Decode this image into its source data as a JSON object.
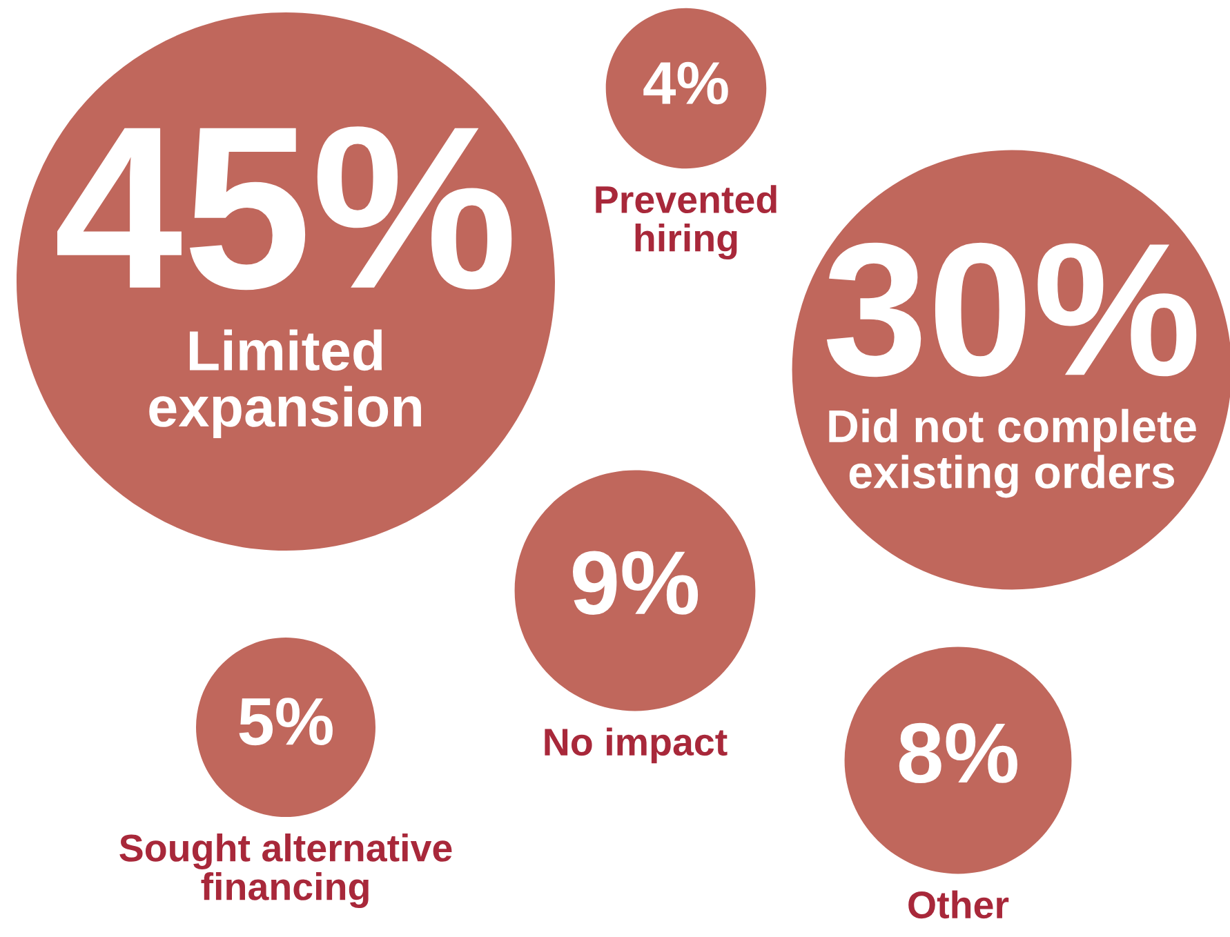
{
  "chart_data": {
    "type": "other",
    "categories": [
      "Limited\nexpansion",
      "Prevented\nhiring",
      "Did not complete\nexisting orders",
      "No impact",
      "Sought alternative\nfinancing",
      "Other"
    ],
    "values": [
      45,
      4,
      30,
      9,
      5,
      8
    ],
    "value_labels": [
      "45%",
      "4%",
      "30%",
      "9%",
      "5%",
      "8%"
    ],
    "color": "#c0675c"
  }
}
